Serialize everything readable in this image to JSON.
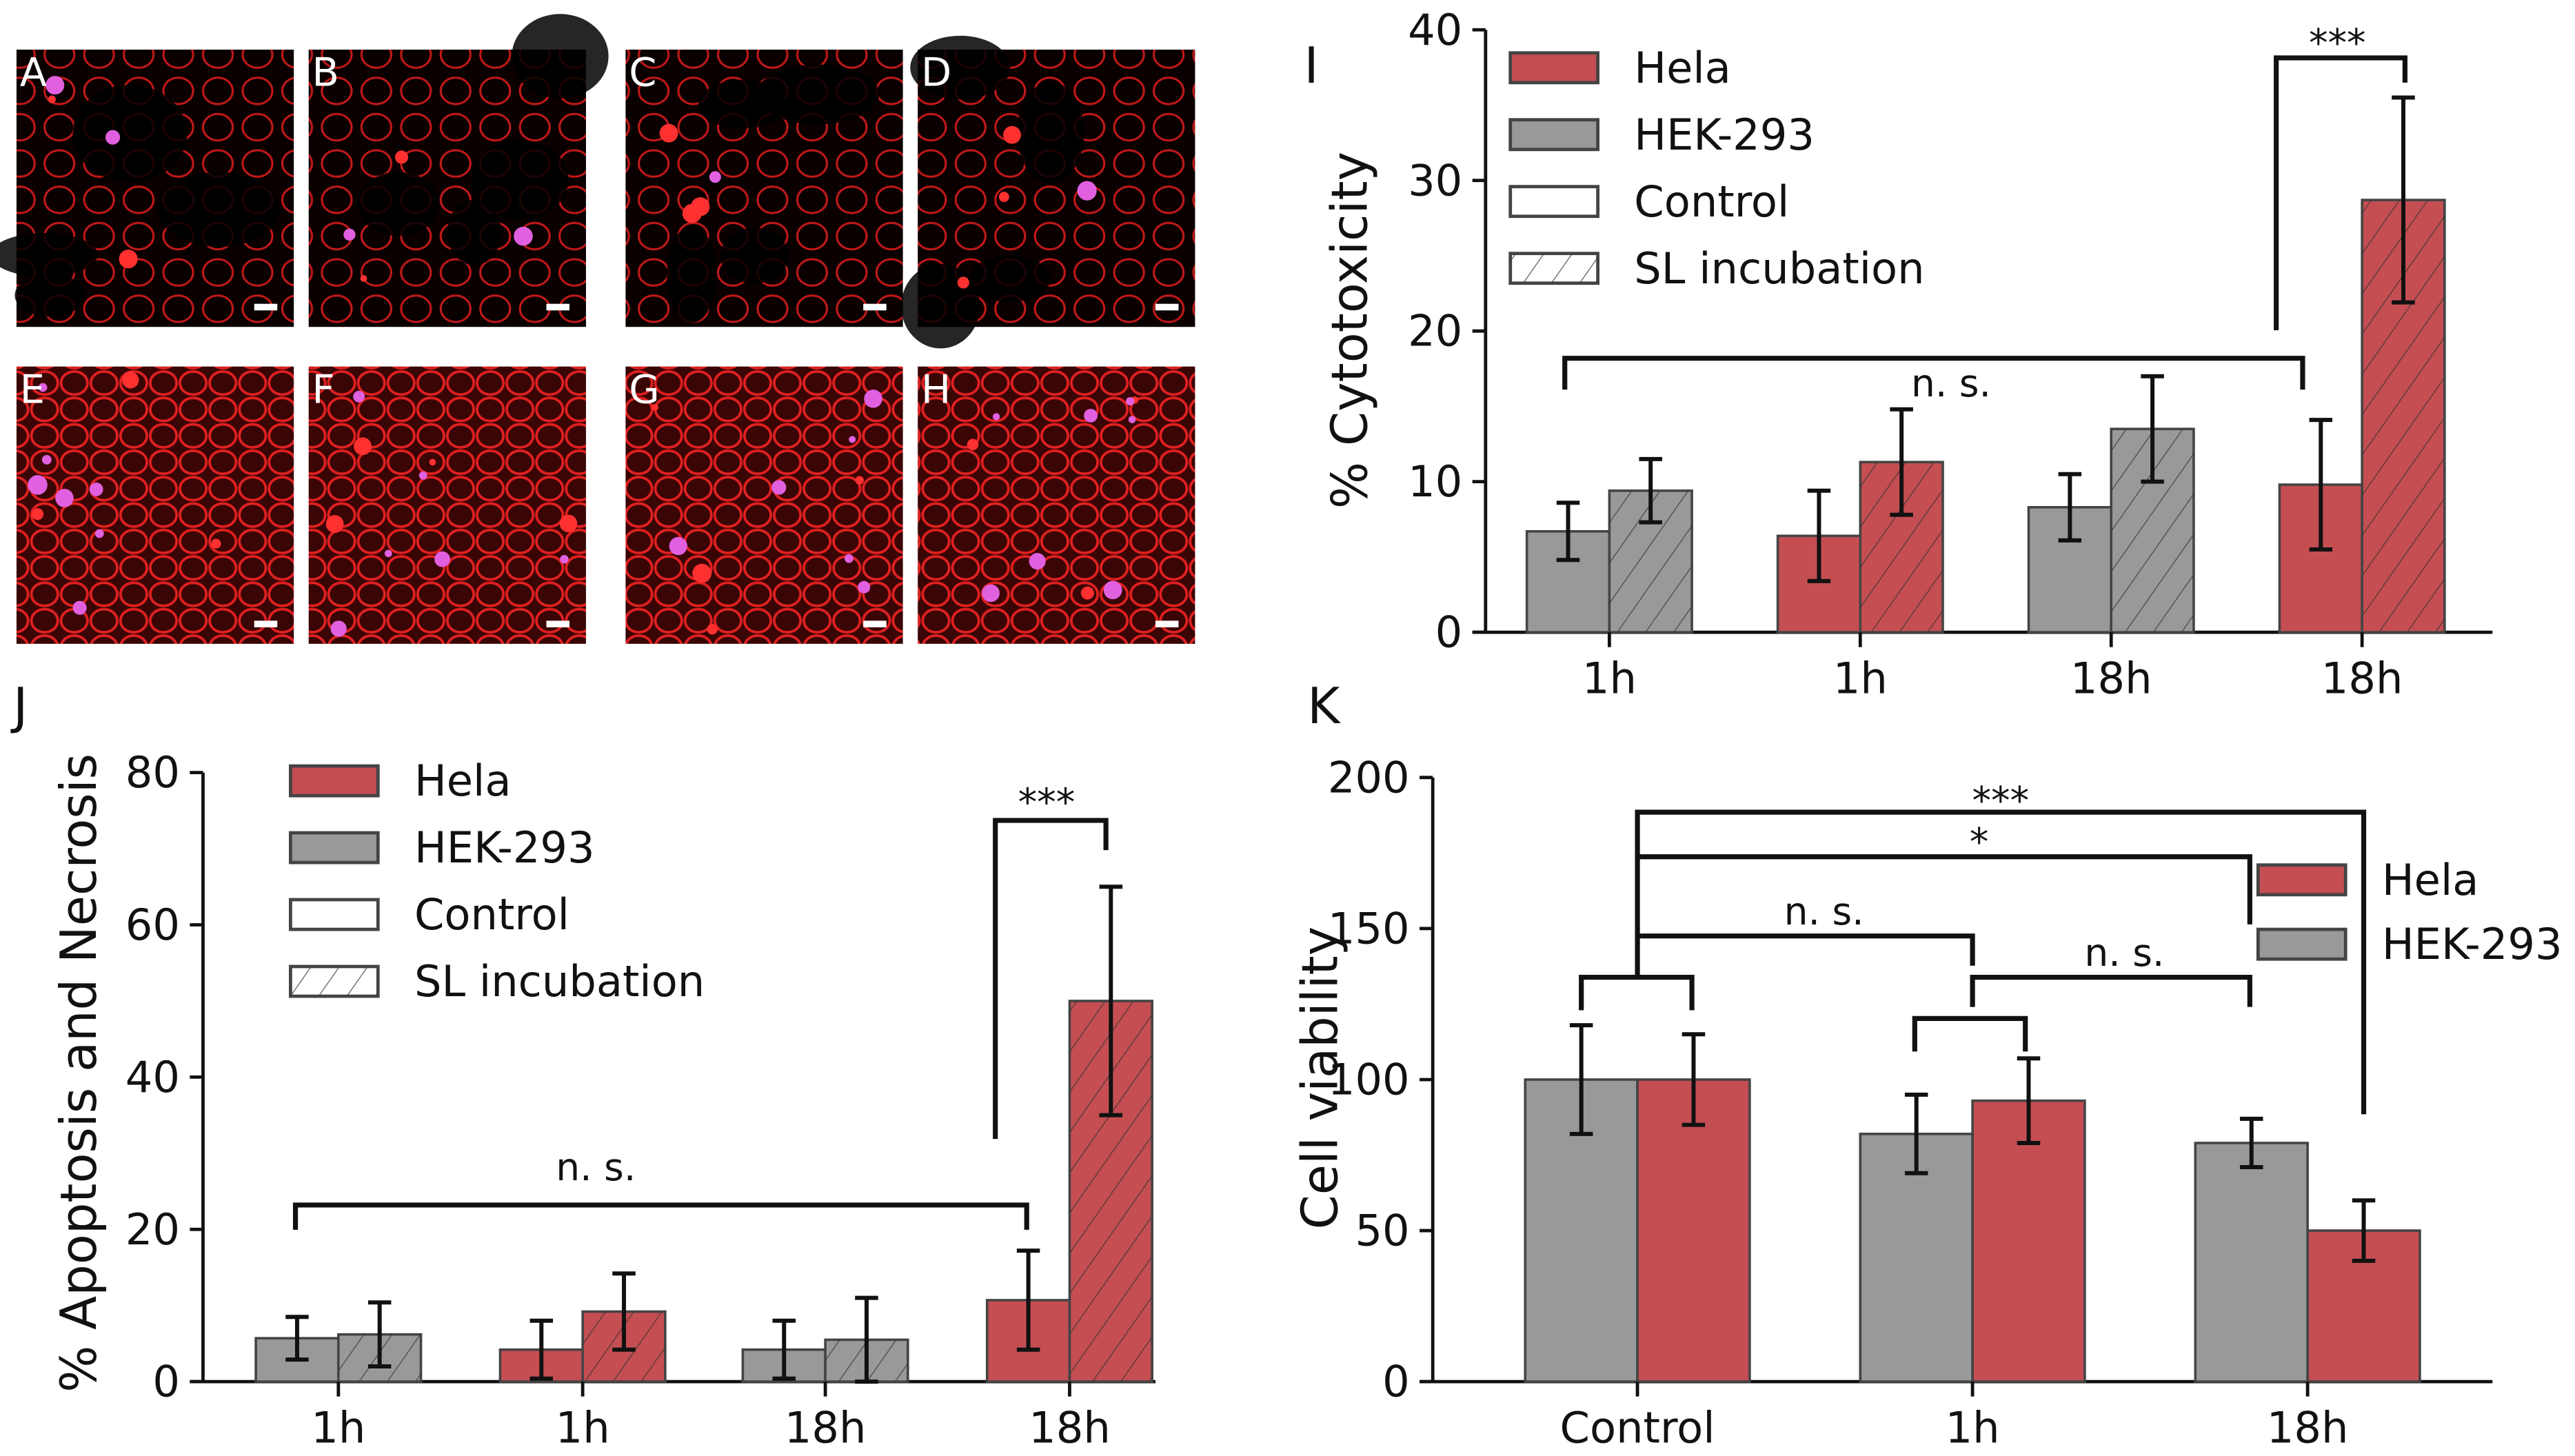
{
  "colors": {
    "hela": "#c44e52",
    "hek": "#999999",
    "edge": "#444444"
  },
  "micrographs": {
    "labels": [
      "A",
      "B",
      "C",
      "D",
      "E",
      "F",
      "G",
      "H"
    ]
  },
  "chart_data": [
    {
      "panel": "I",
      "type": "bar",
      "ylabel": "% Cytotoxicity",
      "ylim": [
        0,
        40
      ],
      "yticks": [
        "0",
        "10",
        "20",
        "30",
        "40"
      ],
      "categories": [
        "1h",
        "1h",
        "18h",
        "18h"
      ],
      "cell_line": [
        "HEK-293",
        "Hela",
        "HEK-293",
        "Hela"
      ],
      "series": [
        {
          "name": "Control",
          "values": [
            6.7,
            6.4,
            8.3,
            9.8
          ],
          "err": [
            1.9,
            3.0,
            2.2,
            4.3
          ]
        },
        {
          "name": "SL incubation",
          "values": [
            9.4,
            11.3,
            13.5,
            28.7
          ],
          "err": [
            2.1,
            3.5,
            3.5,
            6.8
          ]
        }
      ],
      "legend": [
        "Hela",
        "HEK-293",
        "Control",
        "SL incubation"
      ],
      "annotations": {
        "ns": "n. s.",
        "sig": "***"
      }
    },
    {
      "panel": "J",
      "type": "bar",
      "ylabel": "% Apoptosis and Necrosis",
      "ylim": [
        0,
        80
      ],
      "yticks": [
        "0",
        "20",
        "40",
        "60",
        "80"
      ],
      "categories": [
        "1h",
        "1h",
        "18h",
        "18h"
      ],
      "cell_line": [
        "HEK-293",
        "Hela",
        "HEK-293",
        "Hela"
      ],
      "series": [
        {
          "name": "Control",
          "values": [
            5.7,
            4.2,
            4.2,
            10.7
          ],
          "err": [
            2.8,
            3.8,
            3.8,
            6.5
          ]
        },
        {
          "name": "SL incubation",
          "values": [
            6.2,
            9.2,
            5.5,
            50
          ],
          "err": [
            4.2,
            5,
            5.5,
            15
          ]
        }
      ],
      "legend": [
        "Hela",
        "HEK-293",
        "Control",
        "SL incubation"
      ],
      "annotations": {
        "ns": "n. s.",
        "sig": "***"
      }
    },
    {
      "panel": "K",
      "type": "bar",
      "ylabel": "Cell viability",
      "ylim": [
        0,
        200
      ],
      "yticks": [
        "0",
        "50",
        "100",
        "150",
        "200"
      ],
      "categories": [
        "Control",
        "1h",
        "18h"
      ],
      "series": [
        {
          "name": "HEK-293",
          "values": [
            100,
            82,
            79
          ],
          "err": [
            18,
            13,
            8
          ]
        },
        {
          "name": "Hela",
          "values": [
            100,
            93,
            50
          ],
          "err": [
            15,
            14,
            10
          ]
        }
      ],
      "legend": [
        "Hela",
        "HEK-293"
      ],
      "annotations": {
        "ns1": "n. s.",
        "ns2": "n. s.",
        "sig1": "*",
        "sig3": "***"
      }
    }
  ]
}
